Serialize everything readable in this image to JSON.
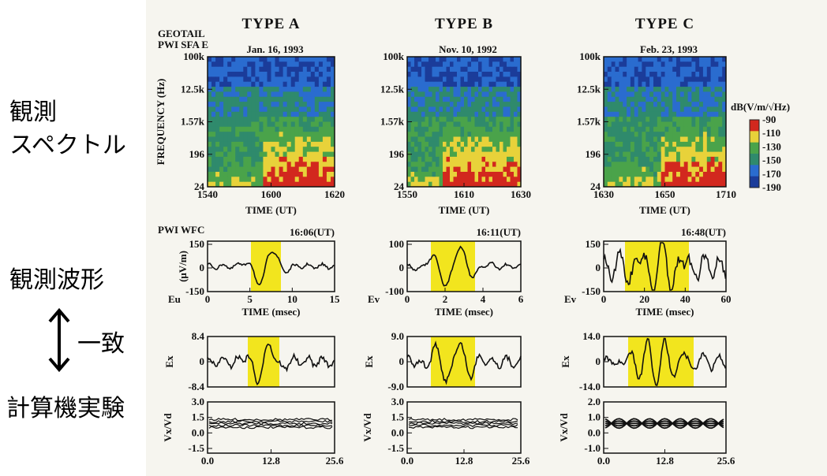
{
  "labels": {
    "spectrum": [
      "観測",
      "スペクトル"
    ],
    "waveform": "観測波形",
    "match": "一致",
    "simulation": "計算機実験"
  },
  "figure": {
    "instrument_spec": [
      "GEOTAIL",
      "PWI SFA E"
    ],
    "instrument_wfc": "PWI WFC",
    "colorbar": {
      "title": "dB(V/m/√Hz)",
      "ticks": [
        "-90",
        "-110",
        "-130",
        "-150",
        "-170",
        "-190"
      ]
    },
    "columns": [
      {
        "title": "TYPE A",
        "date": "Jan. 16, 1993",
        "spectrogram": {
          "ylabel": "FREQUENCY (Hz)",
          "yticks": [
            "100k",
            "12.5k",
            "1.57k",
            "196",
            "24"
          ],
          "xticks": [
            "1540",
            "1600",
            "1620"
          ],
          "xlabel": "TIME (UT)"
        },
        "waveform": {
          "time": "16:06(UT)",
          "ylabel": "(μV/m)",
          "component": "Eu",
          "yticks": [
            "150",
            "0",
            "-150"
          ],
          "xticks": [
            "0",
            "5",
            "10",
            "15"
          ],
          "xlabel": "TIME (msec)"
        },
        "simulation": {
          "ylabel": "Ex",
          "yticks": [
            "8.4",
            "0",
            "-8.4"
          ]
        },
        "phase": {
          "ylabel": "Vx/Vd",
          "yticks": [
            "3.0",
            "1.5",
            "0.0",
            "-1.5"
          ],
          "xticks": [
            "0.0",
            "12.8",
            "25.6"
          ]
        }
      },
      {
        "title": "TYPE B",
        "date": "Nov. 10, 1992",
        "spectrogram": {
          "yticks": [
            "100k",
            "12.5k",
            "1.57k",
            "196",
            "24"
          ],
          "xticks": [
            "1550",
            "1610",
            "1630"
          ],
          "xlabel": "TIME (UT)"
        },
        "waveform": {
          "time": "16:11(UT)",
          "component": "Ev",
          "yticks": [
            "100",
            "0",
            "-100"
          ],
          "xticks": [
            "0",
            "2",
            "4",
            "6"
          ],
          "xlabel": "TIME (msec)"
        },
        "simulation": {
          "ylabel": "Ex",
          "yticks": [
            "9.0",
            "0",
            "-9.0"
          ]
        },
        "phase": {
          "ylabel": "Vx/Vd",
          "yticks": [
            "3.0",
            "1.5",
            "0.0",
            "-1.5"
          ],
          "xticks": [
            "0.0",
            "12.8",
            "25.6"
          ]
        }
      },
      {
        "title": "TYPE C",
        "date": "Feb. 23, 1993",
        "spectrogram": {
          "yticks": [
            "100k",
            "12.5k",
            "1.57k",
            "196",
            "24"
          ],
          "xticks": [
            "1630",
            "1650",
            "1710"
          ],
          "xlabel": "TIME (UT)"
        },
        "waveform": {
          "time": "16:48(UT)",
          "component": "Ev",
          "yticks": [
            "150",
            "0",
            "-150"
          ],
          "xticks": [
            "0",
            "20",
            "40",
            "60"
          ],
          "xlabel": "TIME (msec)"
        },
        "simulation": {
          "ylabel": "Ex",
          "yticks": [
            "14.0",
            "0",
            "-14.0"
          ]
        },
        "phase": {
          "ylabel": "Vx/Vd",
          "yticks": [
            "2.0",
            "1.0",
            "0.0",
            "-1.0"
          ],
          "xticks": [
            "0.0",
            "12.8",
            "25.6"
          ]
        }
      }
    ]
  }
}
